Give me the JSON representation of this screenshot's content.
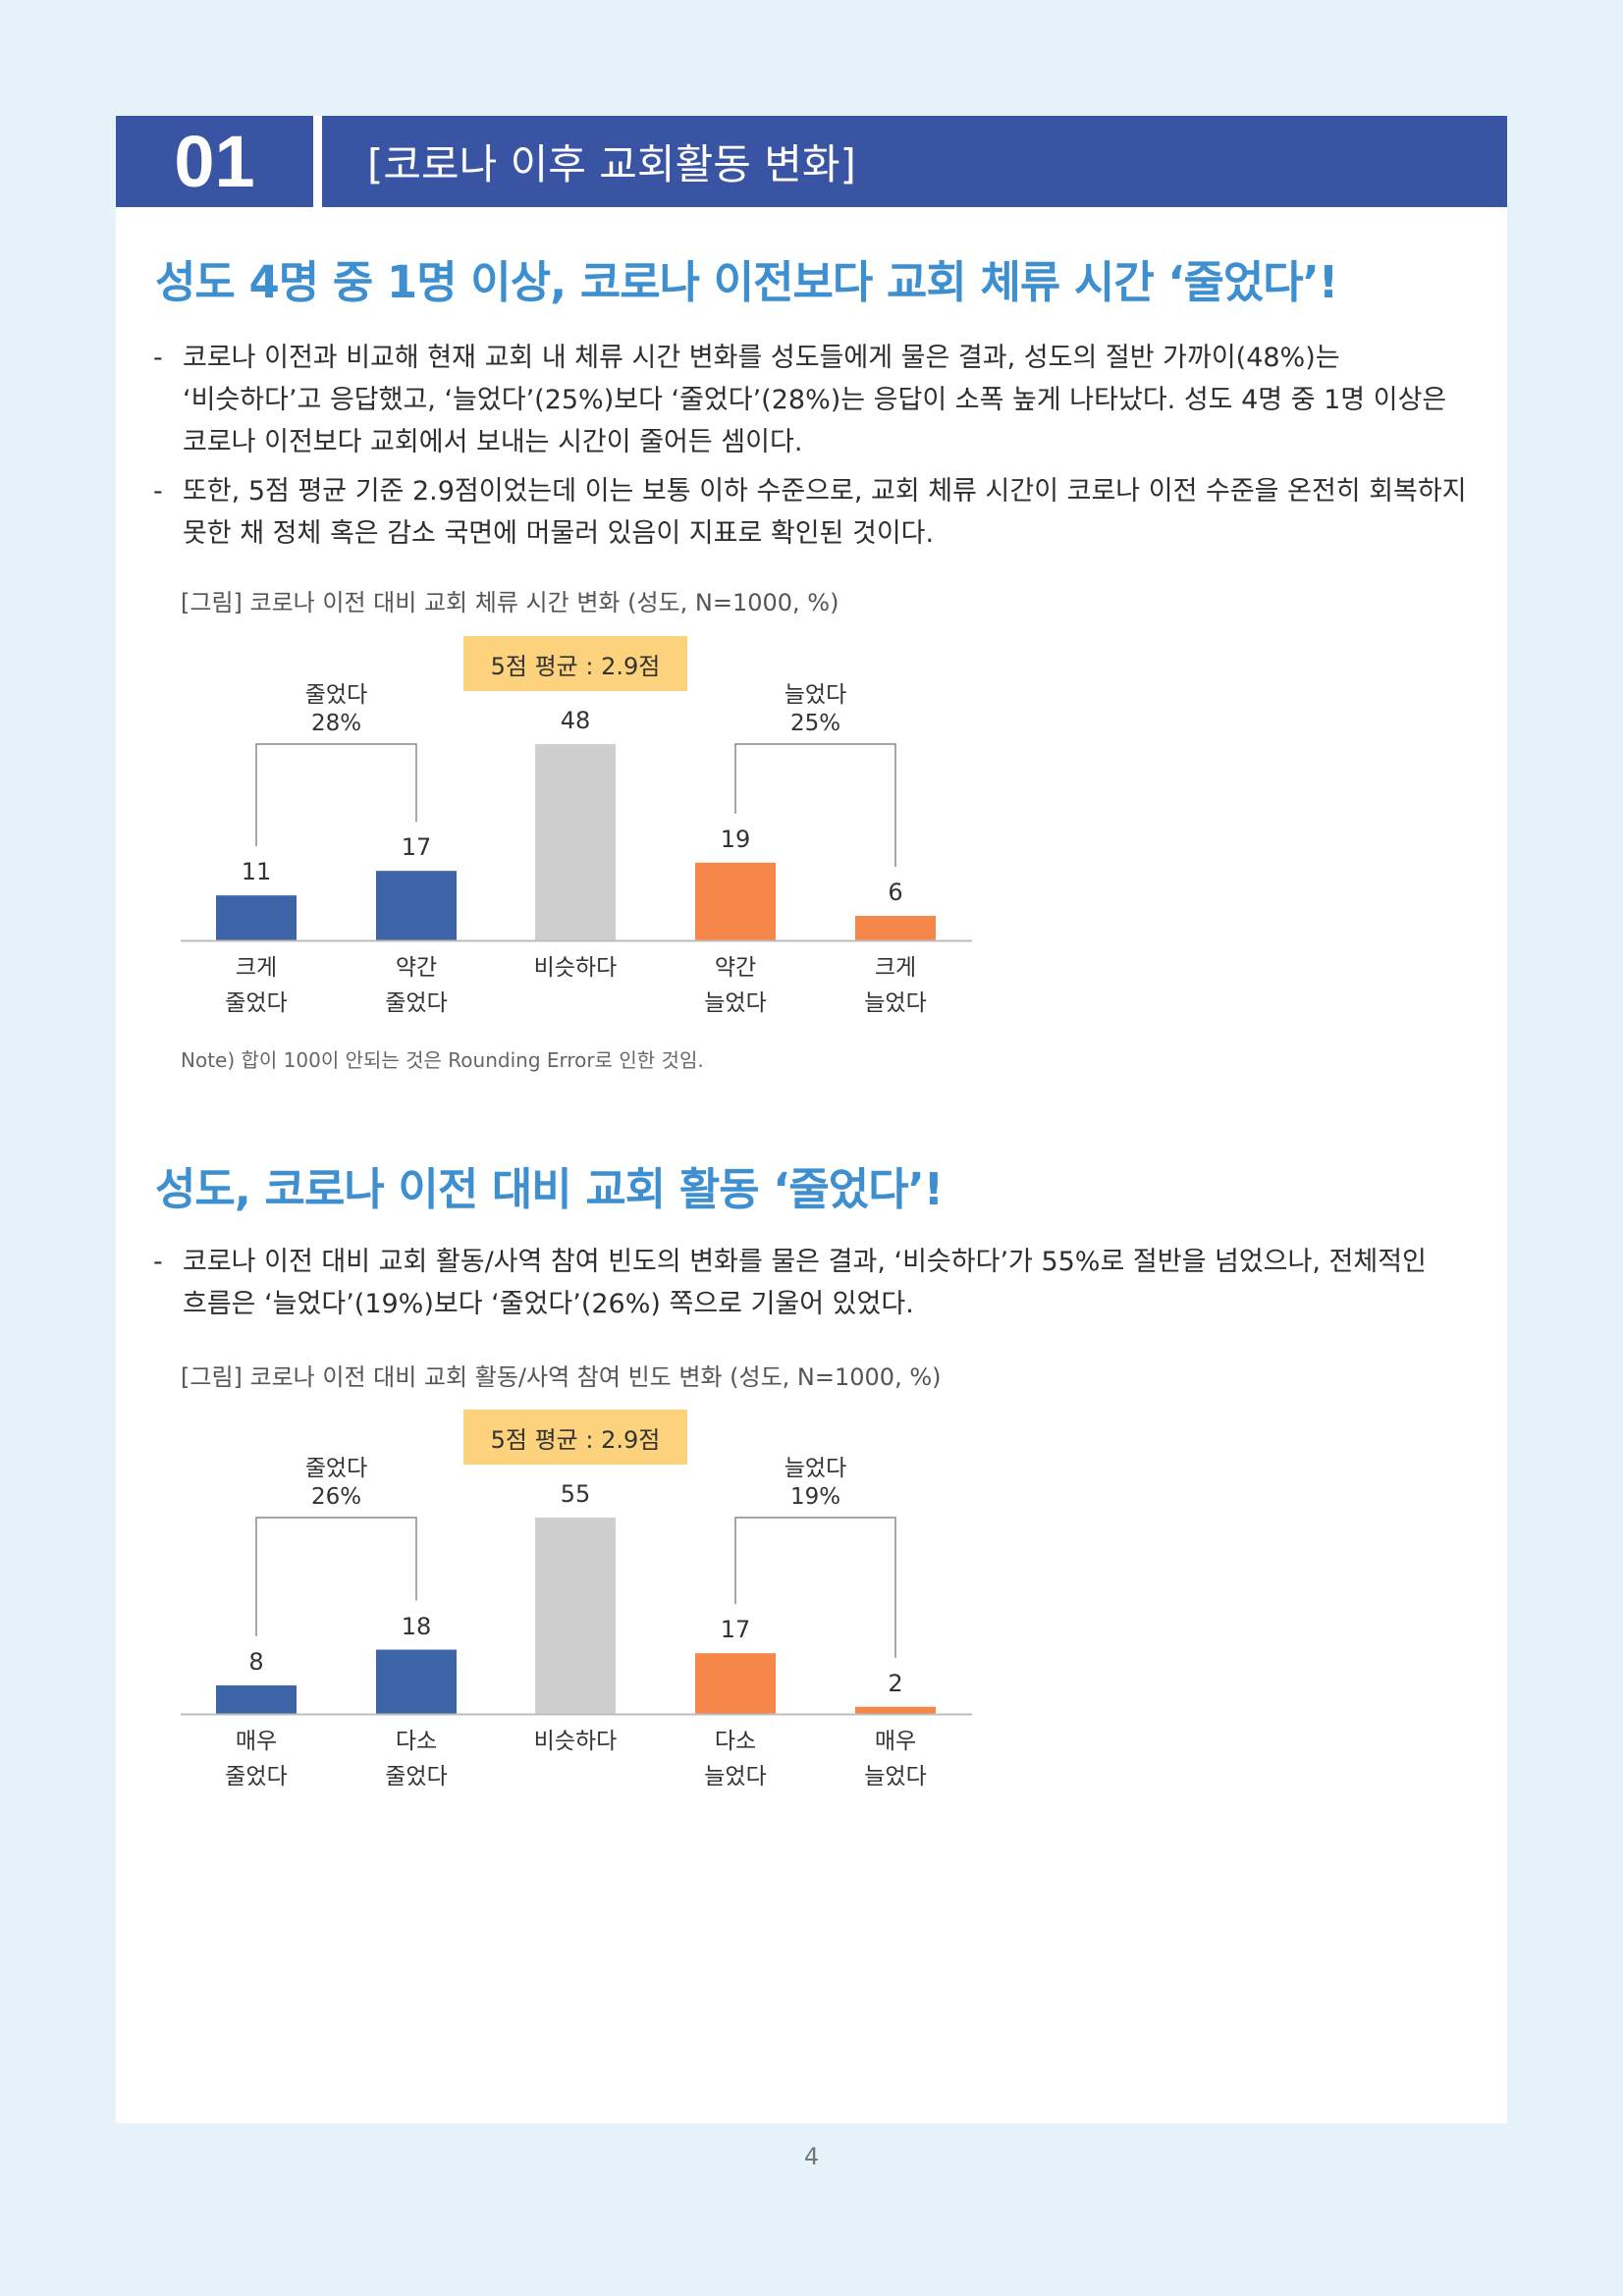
{
  "header": {
    "number": "01",
    "title": "[코로나 이후 교회활동 변화]"
  },
  "section1": {
    "heading": "성도 4명 중 1명 이상, 코로나 이전보다 교회 체류 시간 ‘줄었다’!",
    "bullets": [
      "코로나 이전과 비교해 현재 교회 내 체류 시간 변화를 성도들에게 물은 결과, 성도의 절반 가까이(48%)는 ‘비슷하다’고 응답했고, ‘늘었다’(25%)보다 ‘줄었다’(28%)는 응답이 소폭 높게 나타났다. 성도 4명 중 1명 이상은 코로나 이전보다 교회에서 보내는 시간이 줄어든 셈이다.",
      "또한, 5점 평균 기준 2.9점이었는데 이는 보통 이하 수준으로, 교회 체류 시간이 코로나 이전 수준을 온전히 회복하지 못한 채 정체 혹은 감소 국면에 머물러 있음이 지표로 확인된 것이다."
    ],
    "caption": "[그림] 코로나 이전 대비 교회 체류 시간 변화 (성도, N=1000, %)",
    "note": "Note) 합이 100이 안되는 것은 Rounding Error로 인한 것임."
  },
  "section2": {
    "heading": "성도, 코로나 이전 대비 교회 활동 ‘줄었다’!",
    "bullets": [
      "코로나 이전 대비 교회 활동/사역 참여 빈도의 변화를 물은 결과, ‘비슷하다’가 55%로 절반을 넘었으나, 전체적인 흐름은 ‘늘었다’(19%)보다 ‘줄었다’(26%) 쪽으로 기울어 있었다."
    ],
    "caption": "[그림] 코로나 이전 대비 교회 활동/사역 참여 빈도 변화 (성도, N=1000, %)"
  },
  "chart_data": [
    {
      "type": "bar",
      "average_label": "5점 평균 : 2.9점",
      "groups": [
        {
          "label": "줄었다",
          "value": "28%"
        },
        {
          "label": "늘었다",
          "value": "25%"
        }
      ],
      "categories": [
        [
          "크게",
          "줄었다"
        ],
        [
          "약간",
          "줄었다"
        ],
        [
          "비슷하다"
        ],
        [
          "약간",
          "늘었다"
        ],
        [
          "크게",
          "늘었다"
        ]
      ],
      "values": [
        11,
        17,
        48,
        19,
        6
      ],
      "colors": [
        "#3e64a8",
        "#3e64a8",
        "#cfcfcf",
        "#f5874a",
        "#f5874a"
      ],
      "ylim": [
        0,
        48
      ]
    },
    {
      "type": "bar",
      "average_label": "5점 평균 : 2.9점",
      "groups": [
        {
          "label": "줄었다",
          "value": "26%"
        },
        {
          "label": "늘었다",
          "value": "19%"
        }
      ],
      "categories": [
        [
          "매우",
          "줄었다"
        ],
        [
          "다소",
          "줄었다"
        ],
        [
          "비슷하다"
        ],
        [
          "다소",
          "늘었다"
        ],
        [
          "매우",
          "늘었다"
        ]
      ],
      "values": [
        8,
        18,
        55,
        17,
        2
      ],
      "colors": [
        "#3e64a8",
        "#3e64a8",
        "#cfcfcf",
        "#f5874a",
        "#f5874a"
      ],
      "ylim": [
        0,
        55
      ]
    }
  ],
  "page_number": "4"
}
